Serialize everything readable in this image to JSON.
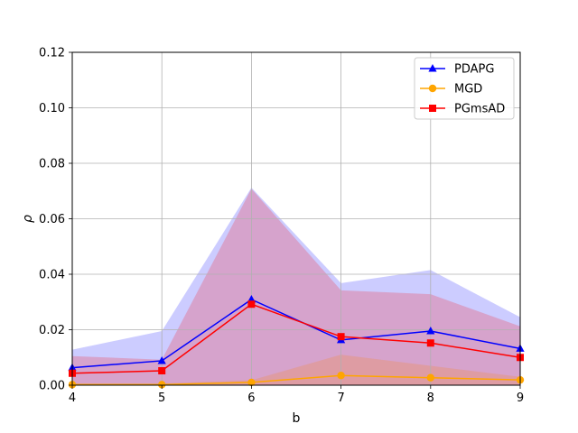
{
  "chart_data": {
    "type": "line",
    "xlabel": "b",
    "ylabel": "ρ",
    "xlim": [
      4,
      9
    ],
    "ylim": [
      0,
      0.12
    ],
    "x": [
      4,
      5,
      6,
      7,
      8,
      9
    ],
    "xticks": [
      "4",
      "5",
      "6",
      "7",
      "8",
      "9"
    ],
    "yticks": [
      "0.00",
      "0.02",
      "0.04",
      "0.06",
      "0.08",
      "0.10",
      "0.12"
    ],
    "grid": true,
    "legend_position": "top-right",
    "series": [
      {
        "name": "PDAPG",
        "color": "#0000ff",
        "band_color": "#0000ff",
        "marker": "triangle",
        "values": [
          0.0063,
          0.0088,
          0.0309,
          0.0163,
          0.0195,
          0.0132
        ],
        "band_low": [
          0.0,
          0.0,
          0.0,
          0.0,
          0.0,
          0.0
        ],
        "band_high": [
          0.0128,
          0.0195,
          0.0712,
          0.0368,
          0.0415,
          0.0245
        ]
      },
      {
        "name": "MGD",
        "color": "#ffa500",
        "band_color": "#ffa500",
        "marker": "circle",
        "values": [
          0.0002,
          0.0002,
          0.001,
          0.0035,
          0.0027,
          0.0019
        ],
        "band_low": [
          0.0,
          0.0,
          0.0,
          0.0,
          0.0,
          0.0
        ],
        "band_high": [
          0.0006,
          0.0006,
          0.0018,
          0.011,
          0.007,
          0.003
        ]
      },
      {
        "name": "PGmsAD",
        "color": "#ff0000",
        "band_color": "#ff0000",
        "marker": "square",
        "values": [
          0.0043,
          0.0052,
          0.0292,
          0.0175,
          0.0152,
          0.01
        ],
        "band_low": [
          0.0,
          0.0,
          0.0,
          0.0,
          0.0,
          0.0
        ],
        "band_high": [
          0.0105,
          0.0092,
          0.0708,
          0.0342,
          0.0328,
          0.0212
        ]
      }
    ]
  }
}
